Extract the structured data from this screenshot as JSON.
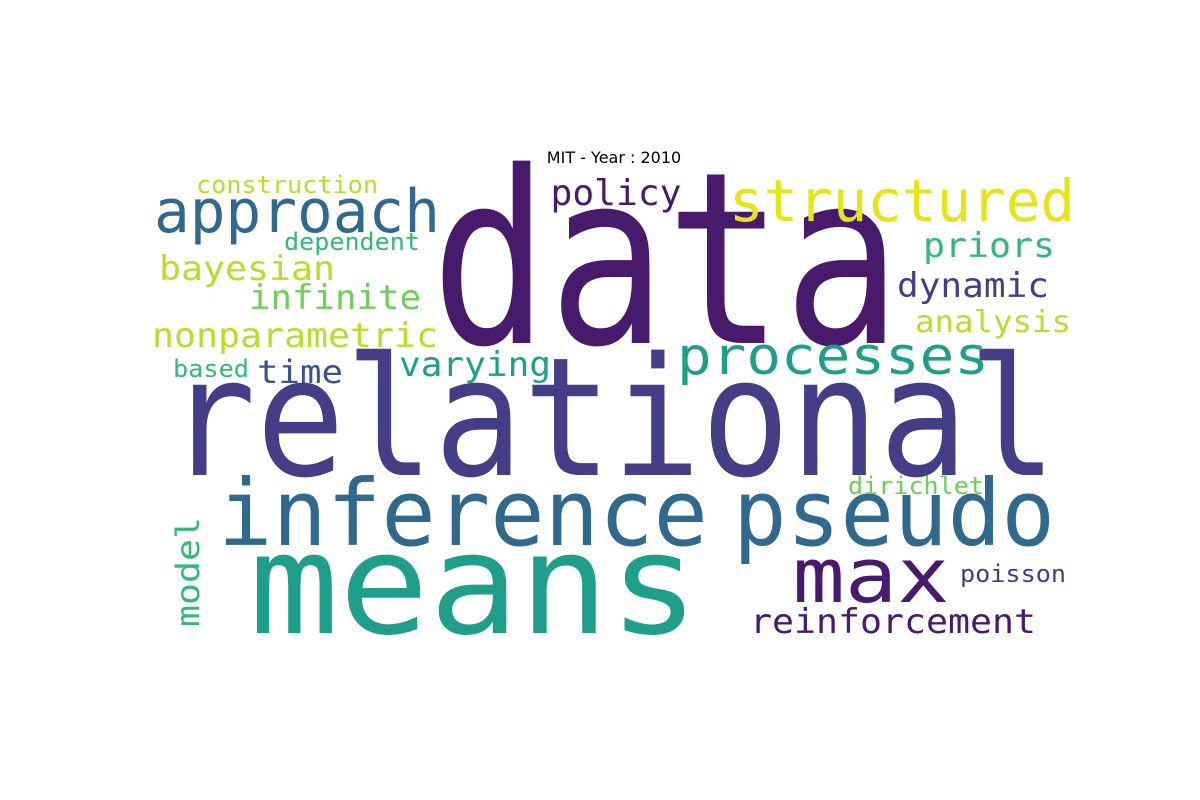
{
  "figure": {
    "title": "MIT - Year : 2010"
  },
  "palette": {
    "purple_dark": "#481a6c",
    "indigo": "#433e85",
    "blue_slate": "#31688e",
    "teal": "#26828e",
    "green_teal": "#1f9e89",
    "sea_green": "#35b779",
    "light_green": "#6ece58",
    "lime": "#b5de2b",
    "yellow": "#fde725"
  },
  "words": [
    {
      "text": "data",
      "color": "#481a6c"
    },
    {
      "text": "relational",
      "color": "#433e85"
    },
    {
      "text": "means",
      "color": "#1f9e89"
    },
    {
      "text": "inference",
      "color": "#31688e"
    },
    {
      "text": "pseudo",
      "color": "#31688e"
    },
    {
      "text": "max",
      "color": "#481a6c"
    },
    {
      "text": "approach",
      "color": "#31688e"
    },
    {
      "text": "structured",
      "color": "#e5e419"
    },
    {
      "text": "processes",
      "color": "#1f9e89"
    },
    {
      "text": "policy",
      "color": "#481a6c"
    },
    {
      "text": "priors",
      "color": "#35b779"
    },
    {
      "text": "dynamic",
      "color": "#433e85"
    },
    {
      "text": "analysis",
      "color": "#b5de2b"
    },
    {
      "text": "construction",
      "color": "#b5de2b"
    },
    {
      "text": "dependent",
      "color": "#35b779"
    },
    {
      "text": "bayesian",
      "color": "#b5de2b"
    },
    {
      "text": "infinite",
      "color": "#6ece58"
    },
    {
      "text": "nonparametric",
      "color": "#b5de2b"
    },
    {
      "text": "varying",
      "color": "#1f9e89"
    },
    {
      "text": "based",
      "color": "#35b779"
    },
    {
      "text": "time",
      "color": "#3b528b"
    },
    {
      "text": "reinforcement",
      "color": "#481a6c"
    },
    {
      "text": "dirichlet",
      "color": "#6ece58"
    },
    {
      "text": "poisson",
      "color": "#433e85"
    },
    {
      "text": "model",
      "color": "#35b779"
    }
  ]
}
